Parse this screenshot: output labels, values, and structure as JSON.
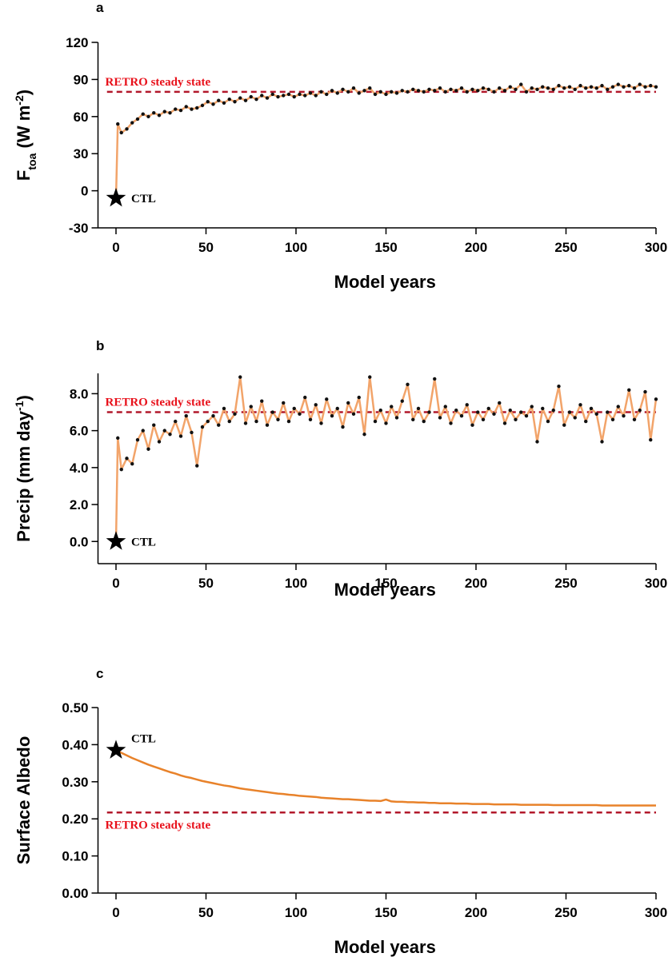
{
  "chart_data": [
    {
      "type": "line",
      "title": "a",
      "xlabel": "Model years",
      "ylabel": [
        {
          "text": "F"
        },
        {
          "text": "toa",
          "shift": "sub"
        },
        {
          "text": " (W m"
        },
        {
          "text": "-2",
          "shift": "super"
        },
        {
          "text": ")"
        }
      ],
      "xlim": [
        -10,
        300
      ],
      "xticks": [
        0,
        50,
        100,
        150,
        200,
        250,
        300
      ],
      "ylim": [
        -30,
        120
      ],
      "yticks": [
        -30,
        0,
        30,
        60,
        90,
        120
      ],
      "ctl": {
        "x": 0,
        "y": -6,
        "label": "CTL"
      },
      "ref": {
        "value": 80,
        "label": "RETRO steady state",
        "color": "#b2182b",
        "label_color": "#e8101a",
        "position": "above"
      },
      "x": [
        1,
        3,
        6,
        9,
        12,
        15,
        18,
        21,
        24,
        27,
        30,
        33,
        36,
        39,
        42,
        45,
        48,
        51,
        54,
        57,
        60,
        63,
        66,
        69,
        72,
        75,
        78,
        81,
        84,
        87,
        90,
        93,
        96,
        99,
        102,
        105,
        108,
        111,
        114,
        117,
        120,
        123,
        126,
        129,
        132,
        135,
        138,
        141,
        144,
        147,
        150,
        153,
        156,
        159,
        162,
        165,
        168,
        171,
        174,
        177,
        180,
        183,
        186,
        189,
        192,
        195,
        198,
        201,
        204,
        207,
        210,
        213,
        216,
        219,
        222,
        225,
        228,
        231,
        234,
        237,
        240,
        243,
        246,
        249,
        252,
        255,
        258,
        261,
        264,
        267,
        270,
        273,
        276,
        279,
        282,
        285,
        288,
        291,
        294,
        297,
        300
      ],
      "series": [
        {
          "color": "#f2a46a",
          "markers": true,
          "marker_color": "#111111",
          "values": [
            54,
            47,
            50,
            55,
            58,
            62,
            60,
            63,
            61,
            64,
            63,
            66,
            65,
            68,
            66,
            67,
            69,
            72,
            70,
            73,
            71,
            74,
            72,
            75,
            73,
            76,
            74,
            77,
            75,
            78,
            76,
            77,
            78,
            76,
            78,
            77,
            79,
            77,
            80,
            78,
            81,
            79,
            82,
            80,
            83,
            79,
            81,
            83,
            78,
            80,
            78,
            80,
            79,
            81,
            80,
            82,
            81,
            80,
            82,
            81,
            83,
            80,
            82,
            81,
            83,
            80,
            82,
            81,
            83,
            82,
            80,
            83,
            81,
            84,
            82,
            86,
            80,
            83,
            82,
            84,
            83,
            82,
            85,
            83,
            84,
            82,
            85,
            83,
            84,
            83,
            85,
            82,
            84,
            86,
            84,
            85,
            83,
            86,
            84,
            85,
            84
          ]
        }
      ]
    },
    {
      "type": "line",
      "title": "b",
      "xlabel": "Model years",
      "ylabel": [
        {
          "text": "Precip (mm day"
        },
        {
          "text": "-1",
          "shift": "super"
        },
        {
          "text": ")"
        }
      ],
      "xlim": [
        -10,
        300
      ],
      "xticks": [
        0,
        50,
        100,
        150,
        200,
        250,
        300
      ],
      "ylim": [
        -1.2,
        9.1
      ],
      "yticks": [
        {
          "value": 0,
          "label": "0.0"
        },
        {
          "value": 2,
          "label": "2.0"
        },
        {
          "value": 4,
          "label": "4.0"
        },
        {
          "value": 6,
          "label": "6.0"
        },
        {
          "value": 8,
          "label": "8.0"
        }
      ],
      "ctl": {
        "x": 0,
        "y": 0,
        "label": "CTL"
      },
      "ref": {
        "value": 7,
        "label": "RETRO steady state",
        "color": "#b2182b",
        "label_color": "#e8101a",
        "position": "above"
      },
      "x": [
        1,
        3,
        6,
        9,
        12,
        15,
        18,
        21,
        24,
        27,
        30,
        33,
        36,
        39,
        42,
        45,
        48,
        51,
        54,
        57,
        60,
        63,
        66,
        69,
        72,
        75,
        78,
        81,
        84,
        87,
        90,
        93,
        96,
        99,
        102,
        105,
        108,
        111,
        114,
        117,
        120,
        123,
        126,
        129,
        132,
        135,
        138,
        141,
        144,
        147,
        150,
        153,
        156,
        159,
        162,
        165,
        168,
        171,
        174,
        177,
        180,
        183,
        186,
        189,
        192,
        195,
        198,
        201,
        204,
        207,
        210,
        213,
        216,
        219,
        222,
        225,
        228,
        231,
        234,
        237,
        240,
        243,
        246,
        249,
        252,
        255,
        258,
        261,
        264,
        267,
        270,
        273,
        276,
        279,
        282,
        285,
        288,
        291,
        294,
        297,
        300
      ],
      "series": [
        {
          "color": "#f2a46a",
          "markers": true,
          "marker_color": "#111111",
          "values": [
            5.6,
            3.9,
            4.5,
            4.2,
            5.5,
            6.0,
            5.0,
            6.3,
            5.4,
            6.0,
            5.8,
            6.5,
            5.7,
            6.8,
            5.9,
            4.1,
            6.2,
            6.5,
            6.8,
            6.3,
            7.2,
            6.5,
            6.9,
            8.9,
            6.4,
            7.3,
            6.5,
            7.6,
            6.3,
            7.0,
            6.6,
            7.5,
            6.5,
            7.2,
            6.9,
            7.8,
            6.6,
            7.4,
            6.4,
            7.7,
            6.8,
            7.2,
            6.2,
            7.5,
            6.9,
            7.8,
            5.8,
            8.9,
            6.5,
            7.1,
            6.4,
            7.3,
            6.7,
            7.6,
            8.5,
            6.6,
            7.2,
            6.5,
            7.0,
            8.8,
            6.7,
            7.3,
            6.4,
            7.1,
            6.8,
            7.4,
            6.3,
            7.0,
            6.6,
            7.2,
            6.9,
            7.5,
            6.4,
            7.1,
            6.6,
            7.0,
            6.8,
            7.3,
            5.4,
            7.2,
            6.5,
            7.1,
            8.4,
            6.3,
            7.0,
            6.7,
            7.4,
            6.5,
            7.2,
            6.9,
            5.4,
            7.0,
            6.6,
            7.3,
            6.8,
            8.2,
            6.6,
            7.1,
            8.1,
            5.5,
            7.7
          ]
        }
      ]
    },
    {
      "type": "line",
      "title": "c",
      "xlabel": "Model years",
      "ylabel": [
        {
          "text": "Surface Albedo"
        }
      ],
      "xlim": [
        -10,
        300
      ],
      "xticks": [
        0,
        50,
        100,
        150,
        200,
        250,
        300
      ],
      "ylim": [
        0,
        0.5
      ],
      "yticks": [
        {
          "value": 0,
          "label": "0.00"
        },
        {
          "value": 0.1,
          "label": "0.10"
        },
        {
          "value": 0.2,
          "label": "0.20"
        },
        {
          "value": 0.3,
          "label": "0.30"
        },
        {
          "value": 0.4,
          "label": "0.40"
        },
        {
          "value": 0.5,
          "label": "0.50"
        }
      ],
      "ctl": {
        "x": 0,
        "y": 0.385,
        "label": "CTL"
      },
      "ref": {
        "value": 0.217,
        "label": "RETRO steady state",
        "color": "#b2182b",
        "label_color": "#e8101a",
        "position": "below"
      },
      "x": [
        3,
        6,
        9,
        12,
        15,
        18,
        21,
        24,
        27,
        30,
        33,
        36,
        39,
        42,
        45,
        48,
        51,
        54,
        57,
        60,
        63,
        66,
        69,
        72,
        75,
        78,
        81,
        84,
        87,
        90,
        93,
        96,
        99,
        102,
        105,
        108,
        111,
        114,
        117,
        120,
        123,
        126,
        129,
        132,
        135,
        138,
        141,
        144,
        147,
        150,
        153,
        156,
        159,
        162,
        165,
        168,
        171,
        174,
        177,
        180,
        183,
        186,
        189,
        192,
        195,
        198,
        201,
        204,
        207,
        210,
        213,
        216,
        219,
        222,
        225,
        228,
        231,
        234,
        237,
        240,
        243,
        246,
        249,
        252,
        255,
        258,
        261,
        264,
        267,
        270,
        273,
        276,
        279,
        282,
        285,
        288,
        291,
        294,
        297,
        300
      ],
      "series": [
        {
          "color": "#e8822a",
          "markers": false,
          "values": [
            0.378,
            0.371,
            0.364,
            0.358,
            0.352,
            0.346,
            0.341,
            0.336,
            0.331,
            0.326,
            0.322,
            0.317,
            0.313,
            0.31,
            0.306,
            0.302,
            0.299,
            0.296,
            0.293,
            0.29,
            0.288,
            0.285,
            0.282,
            0.28,
            0.278,
            0.276,
            0.274,
            0.272,
            0.27,
            0.268,
            0.267,
            0.265,
            0.264,
            0.262,
            0.261,
            0.26,
            0.259,
            0.257,
            0.256,
            0.255,
            0.254,
            0.253,
            0.253,
            0.252,
            0.251,
            0.25,
            0.249,
            0.249,
            0.248,
            0.252,
            0.247,
            0.246,
            0.246,
            0.245,
            0.245,
            0.244,
            0.244,
            0.243,
            0.243,
            0.242,
            0.242,
            0.242,
            0.241,
            0.241,
            0.241,
            0.24,
            0.24,
            0.24,
            0.24,
            0.239,
            0.239,
            0.239,
            0.239,
            0.239,
            0.238,
            0.238,
            0.238,
            0.238,
            0.238,
            0.238,
            0.237,
            0.237,
            0.237,
            0.237,
            0.237,
            0.237,
            0.237,
            0.237,
            0.237,
            0.236,
            0.236,
            0.236,
            0.236,
            0.236,
            0.236,
            0.236,
            0.236,
            0.236,
            0.236,
            0.236
          ]
        }
      ]
    }
  ]
}
